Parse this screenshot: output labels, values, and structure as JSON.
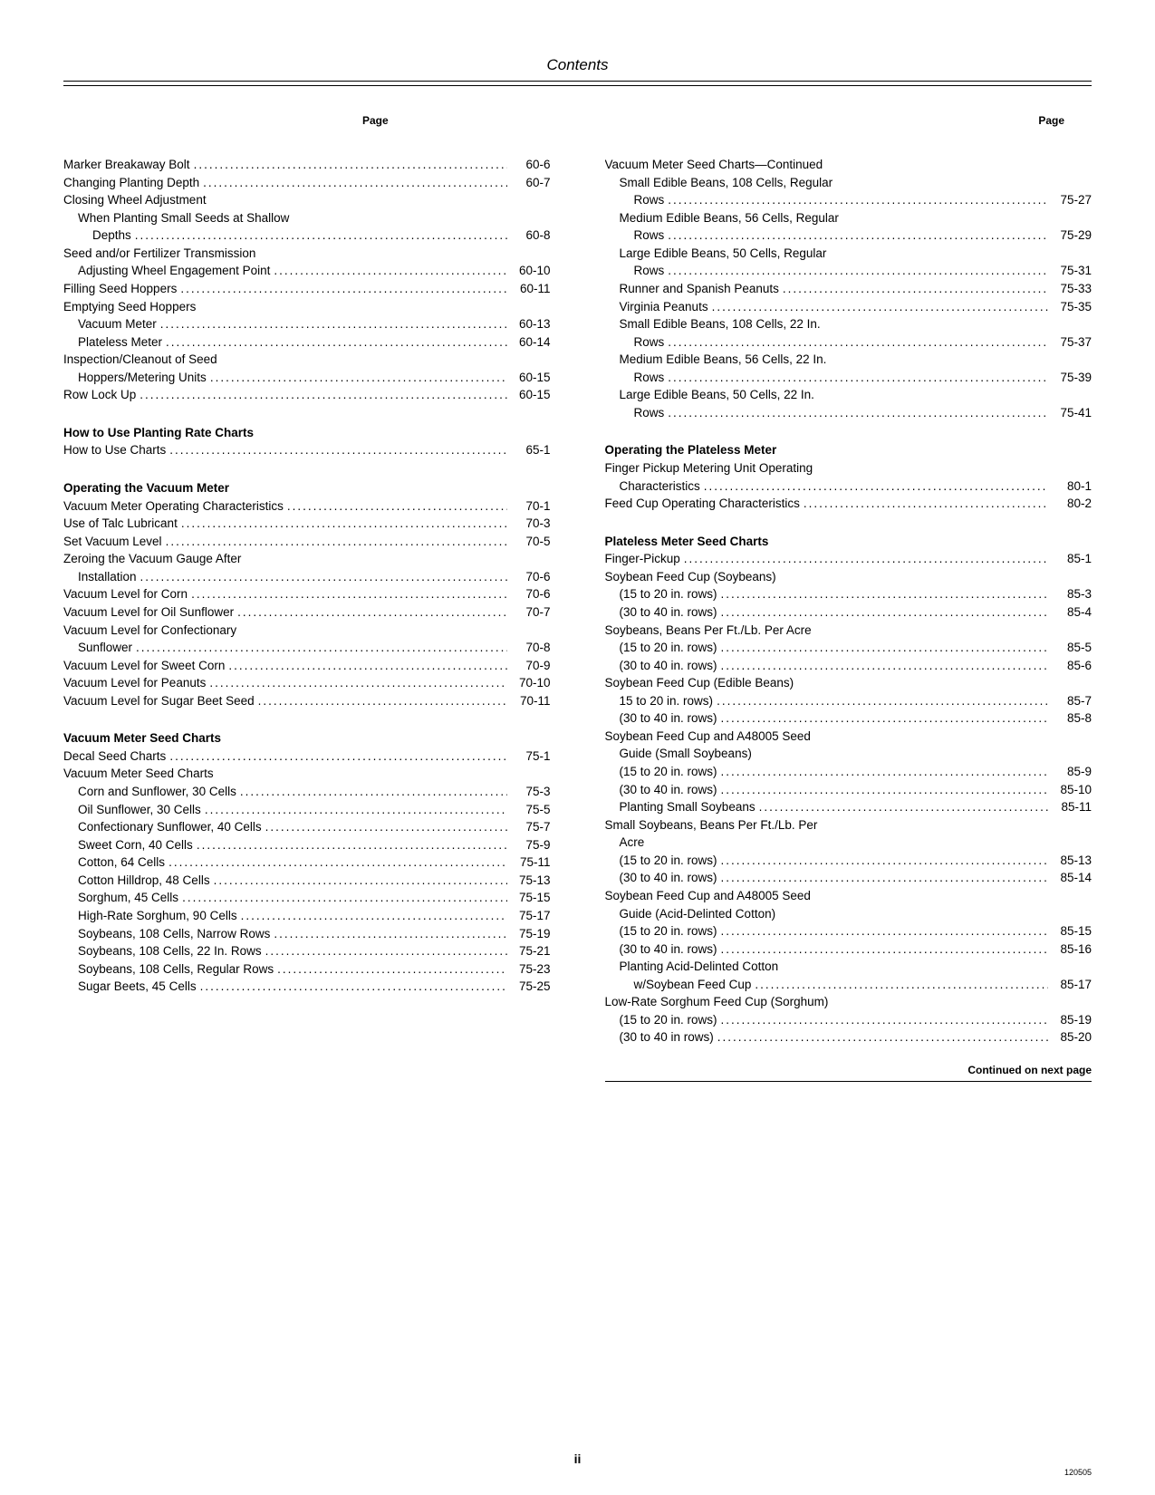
{
  "header": {
    "title": "Contents",
    "pageLabel": "Page"
  },
  "footer": {
    "pageNumber": "ii",
    "continued": "Continued on next page",
    "code": "120505"
  },
  "left": [
    {
      "label": "Marker Breakaway Bolt",
      "page": "60-6"
    },
    {
      "label": "Changing Planting Depth",
      "page": "60-7"
    },
    {
      "label": "Closing Wheel Adjustment",
      "page": "",
      "nopage": true
    },
    {
      "label": "When Planting Small Seeds at Shallow",
      "page": "",
      "indent": 1,
      "nopage": true
    },
    {
      "label": "Depths",
      "page": "60-8",
      "indent": 2
    },
    {
      "label": "Seed and/or Fertilizer Transmission",
      "page": "",
      "nopage": true
    },
    {
      "label": "Adjusting Wheel Engagement Point",
      "page": "60-10",
      "indent": 1
    },
    {
      "label": "Filling Seed Hoppers",
      "page": "60-11"
    },
    {
      "label": "Emptying Seed Hoppers",
      "page": "",
      "nopage": true
    },
    {
      "label": "Vacuum Meter",
      "page": "60-13",
      "indent": 1
    },
    {
      "label": "Plateless Meter",
      "page": "60-14",
      "indent": 1
    },
    {
      "label": "Inspection/Cleanout of Seed",
      "page": "",
      "nopage": true
    },
    {
      "label": "Hoppers/Metering Units",
      "page": "60-15",
      "indent": 1
    },
    {
      "label": "Row Lock Up",
      "page": "60-15"
    },
    {
      "label": "How to Use Planting Rate Charts",
      "page": "",
      "heading": true
    },
    {
      "label": "How to Use Charts",
      "page": "65-1"
    },
    {
      "label": "Operating the Vacuum Meter",
      "page": "",
      "heading": true
    },
    {
      "label": "Vacuum Meter Operating Characteristics",
      "page": "70-1"
    },
    {
      "label": "Use of Talc Lubricant",
      "page": "70-3"
    },
    {
      "label": "Set Vacuum Level",
      "page": "70-5"
    },
    {
      "label": "Zeroing the Vacuum Gauge After",
      "page": "",
      "nopage": true
    },
    {
      "label": "Installation",
      "page": "70-6",
      "indent": 1
    },
    {
      "label": "Vacuum Level for Corn",
      "page": "70-6"
    },
    {
      "label": "Vacuum Level for Oil Sunflower",
      "page": "70-7"
    },
    {
      "label": "Vacuum Level for Confectionary",
      "page": "",
      "nopage": true
    },
    {
      "label": "Sunflower",
      "page": "70-8",
      "indent": 1
    },
    {
      "label": "Vacuum Level for Sweet Corn",
      "page": "70-9"
    },
    {
      "label": "Vacuum Level for Peanuts",
      "page": "70-10"
    },
    {
      "label": "Vacuum Level for Sugar Beet Seed",
      "page": "70-11"
    },
    {
      "label": "Vacuum Meter Seed Charts",
      "page": "",
      "heading": true
    },
    {
      "label": "Decal Seed Charts",
      "page": "75-1"
    },
    {
      "label": "Vacuum Meter Seed Charts",
      "page": "",
      "nopage": true
    },
    {
      "label": "Corn and Sunflower, 30 Cells",
      "page": "75-3",
      "indent": 1
    },
    {
      "label": "Oil Sunflower, 30 Cells",
      "page": "75-5",
      "indent": 1
    },
    {
      "label": "Confectionary Sunflower, 40 Cells",
      "page": "75-7",
      "indent": 1
    },
    {
      "label": "Sweet Corn, 40 Cells",
      "page": "75-9",
      "indent": 1
    },
    {
      "label": "Cotton, 64 Cells",
      "page": "75-11",
      "indent": 1
    },
    {
      "label": "Cotton Hilldrop, 48 Cells",
      "page": "75-13",
      "indent": 1
    },
    {
      "label": "Sorghum, 45 Cells",
      "page": "75-15",
      "indent": 1
    },
    {
      "label": "High-Rate Sorghum, 90 Cells",
      "page": "75-17",
      "indent": 1
    },
    {
      "label": "Soybeans, 108 Cells, Narrow Rows",
      "page": "75-19",
      "indent": 1
    },
    {
      "label": "Soybeans, 108 Cells, 22 In. Rows",
      "page": "75-21",
      "indent": 1
    },
    {
      "label": "Soybeans, 108 Cells, Regular Rows",
      "page": "75-23",
      "indent": 1
    },
    {
      "label": "Sugar Beets, 45 Cells",
      "page": "75-25",
      "indent": 1
    }
  ],
  "right": [
    {
      "label": "Vacuum Meter Seed Charts—Continued",
      "page": "",
      "nopage": true
    },
    {
      "label": "Small Edible Beans, 108 Cells, Regular",
      "page": "",
      "indent": 1,
      "nopage": true
    },
    {
      "label": "Rows",
      "page": "75-27",
      "indent": 2
    },
    {
      "label": "Medium Edible Beans, 56 Cells, Regular",
      "page": "",
      "indent": 1,
      "nopage": true
    },
    {
      "label": "Rows",
      "page": "75-29",
      "indent": 2
    },
    {
      "label": "Large Edible Beans, 50 Cells, Regular",
      "page": "",
      "indent": 1,
      "nopage": true
    },
    {
      "label": "Rows",
      "page": "75-31",
      "indent": 2
    },
    {
      "label": "Runner and Spanish Peanuts",
      "page": "75-33",
      "indent": 1
    },
    {
      "label": "Virginia Peanuts",
      "page": "75-35",
      "indent": 1
    },
    {
      "label": "Small Edible Beans, 108 Cells, 22 In.",
      "page": "",
      "indent": 1,
      "nopage": true
    },
    {
      "label": "Rows",
      "page": "75-37",
      "indent": 2
    },
    {
      "label": "Medium Edible Beans, 56 Cells, 22 In.",
      "page": "",
      "indent": 1,
      "nopage": true
    },
    {
      "label": "Rows",
      "page": "75-39",
      "indent": 2
    },
    {
      "label": "Large Edible Beans, 50 Cells, 22 In.",
      "page": "",
      "indent": 1,
      "nopage": true
    },
    {
      "label": "Rows",
      "page": "75-41",
      "indent": 2
    },
    {
      "label": "Operating the Plateless Meter",
      "page": "",
      "heading": true
    },
    {
      "label": "Finger Pickup Metering Unit Operating",
      "page": "",
      "nopage": true
    },
    {
      "label": "Characteristics",
      "page": "80-1",
      "indent": 1
    },
    {
      "label": "Feed Cup Operating Characteristics",
      "page": "80-2"
    },
    {
      "label": "Plateless Meter Seed Charts",
      "page": "",
      "heading": true
    },
    {
      "label": "Finger-Pickup",
      "page": "85-1"
    },
    {
      "label": "Soybean Feed Cup (Soybeans)",
      "page": "",
      "nopage": true
    },
    {
      "label": "(15 to 20 in. rows)",
      "page": "85-3",
      "indent": 1
    },
    {
      "label": "(30 to 40 in. rows)",
      "page": "85-4",
      "indent": 1
    },
    {
      "label": "Soybeans, Beans Per Ft./Lb. Per Acre",
      "page": "",
      "nopage": true
    },
    {
      "label": "(15 to 20 in. rows)",
      "page": "85-5",
      "indent": 1
    },
    {
      "label": "(30 to 40 in. rows)",
      "page": "85-6",
      "indent": 1
    },
    {
      "label": "Soybean Feed Cup (Edible Beans)",
      "page": "",
      "nopage": true
    },
    {
      "label": "15 to 20 in. rows)",
      "page": "85-7",
      "indent": 1
    },
    {
      "label": "(30 to 40 in. rows)",
      "page": "85-8",
      "indent": 1
    },
    {
      "label": "Soybean Feed Cup and A48005 Seed",
      "page": "",
      "nopage": true
    },
    {
      "label": "Guide (Small Soybeans)",
      "page": "",
      "indent": 1,
      "nopage": true
    },
    {
      "label": "(15 to 20 in. rows)",
      "page": "85-9",
      "indent": 1
    },
    {
      "label": "(30 to 40 in. rows)",
      "page": "85-10",
      "indent": 1
    },
    {
      "label": "Planting Small Soybeans",
      "page": "85-11",
      "indent": 1
    },
    {
      "label": "Small Soybeans, Beans Per Ft./Lb. Per",
      "page": "",
      "nopage": true
    },
    {
      "label": "Acre",
      "page": "",
      "indent": 1,
      "nopage": true
    },
    {
      "label": "(15 to 20 in. rows)",
      "page": "85-13",
      "indent": 1
    },
    {
      "label": "(30 to 40 in. rows)",
      "page": "85-14",
      "indent": 1
    },
    {
      "label": "Soybean Feed Cup and A48005 Seed",
      "page": "",
      "nopage": true
    },
    {
      "label": "Guide (Acid-Delinted Cotton)",
      "page": "",
      "indent": 1,
      "nopage": true
    },
    {
      "label": "(15 to 20 in. rows)",
      "page": "85-15",
      "indent": 1
    },
    {
      "label": "(30 to 40 in. rows)",
      "page": "85-16",
      "indent": 1
    },
    {
      "label": "Planting Acid-Delinted Cotton",
      "page": "",
      "indent": 1,
      "nopage": true
    },
    {
      "label": "w/Soybean Feed Cup",
      "page": "85-17",
      "indent": 2
    },
    {
      "label": "Low-Rate Sorghum Feed Cup (Sorghum)",
      "page": "",
      "nopage": true
    },
    {
      "label": "(15 to 20 in. rows)",
      "page": "85-19",
      "indent": 1
    },
    {
      "label": "(30 to 40 in rows)",
      "page": "85-20",
      "indent": 1
    }
  ]
}
